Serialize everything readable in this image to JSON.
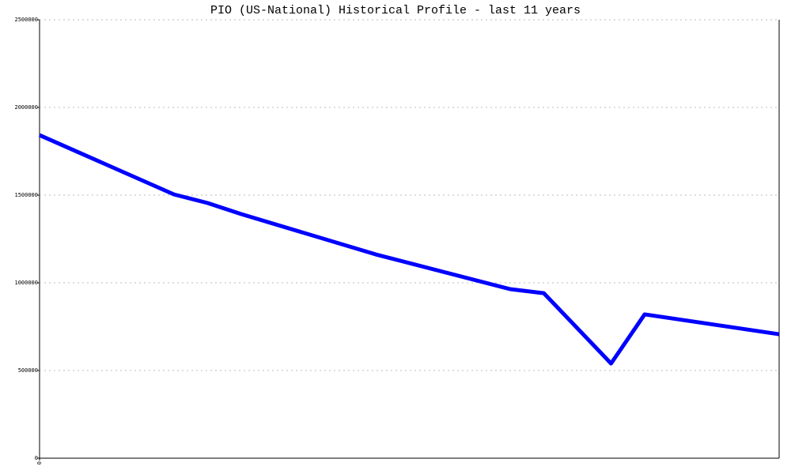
{
  "chart_data": {
    "type": "line",
    "title": "PIO (US-National) Historical Profile - last 11 years",
    "x": [
      0,
      2,
      2.5,
      3,
      5,
      7,
      7.5,
      8.5,
      9,
      11
    ],
    "series": [
      {
        "color": "#0000ff",
        "values": [
          1842000,
          1504000,
          1455000,
          1392000,
          1162000,
          964000,
          941000,
          540000,
          820000,
          707000
        ]
      }
    ],
    "xlim": [
      0,
      11
    ],
    "xticks": [
      0
    ],
    "ylim": [
      0,
      2500000
    ],
    "yticks": [
      0,
      500000,
      1000000,
      1500000,
      2000000,
      2500000
    ],
    "grid": true
  }
}
